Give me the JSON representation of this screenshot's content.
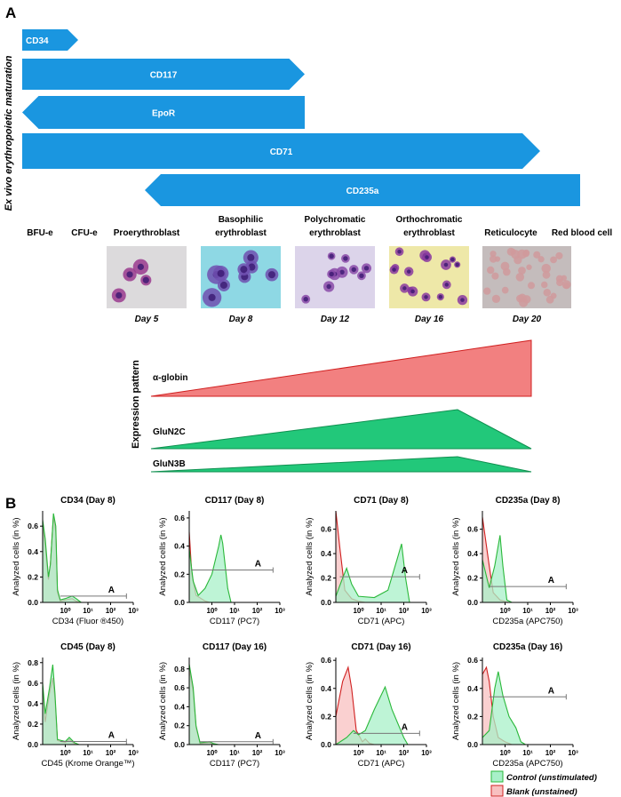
{
  "panel_a": {
    "label": "A",
    "side_label": "Ex vivo erythropoietic maturation",
    "arrows": [
      {
        "label": "CD34",
        "direction": "right"
      },
      {
        "label": "CD117",
        "direction": "right"
      },
      {
        "label": "EpoR",
        "direction": "left"
      },
      {
        "label": "CD71",
        "direction": "right"
      },
      {
        "label": "CD235a",
        "direction": "left"
      }
    ],
    "arrow_color": "#1a96e0",
    "stages": [
      {
        "line1": "BFU-e",
        "line2": ""
      },
      {
        "line1": "CFU-e",
        "line2": ""
      },
      {
        "line1": "Proerythroblast",
        "line2": ""
      },
      {
        "line1": "Basophilic",
        "line2": "erythroblast"
      },
      {
        "line1": "Polychromatic",
        "line2": "erythroblast"
      },
      {
        "line1": "Orthochromatic",
        "line2": "erythroblast"
      },
      {
        "line1": "Reticulocyte",
        "line2": ""
      },
      {
        "line1": "Red blood cell",
        "line2": ""
      }
    ],
    "micrographs": [
      {
        "day": "Day 5",
        "bg": "#dcdadc",
        "cell": "#9a3a8e"
      },
      {
        "day": "Day 8",
        "bg": "#8ed8e4",
        "cell": "#7050b0"
      },
      {
        "day": "Day 12",
        "bg": "#dcd4ea",
        "cell": "#8a4aa8"
      },
      {
        "day": "Day 16",
        "bg": "#eee8a8",
        "cell": "#8a3aa0"
      },
      {
        "day": "Day 20",
        "bg": "#c4bcbc",
        "cell": "#d09a9c"
      }
    ],
    "expression": {
      "label": "Expression pattern",
      "items": [
        {
          "label": "α-globin",
          "color": "#f28080",
          "stroke": "#d02020"
        },
        {
          "label": "GluN2C",
          "color": "#22c87a",
          "stroke": "#109050"
        },
        {
          "label": "GluN3B",
          "color": "#22c87a",
          "stroke": "#109050"
        }
      ]
    }
  },
  "panel_b": {
    "label": "B",
    "legend": [
      {
        "label": "Control (unstimulated)",
        "color": "#a8f0c8"
      },
      {
        "label": "Blank (unstained)",
        "color": "#f8c0c0"
      }
    ]
  },
  "chart_data": [
    {
      "type": "area",
      "title": "CD34 (Day 8)",
      "xlabel": "CD34 (Fluor ®450)",
      "ylabel": "Analyzed cells (in %)",
      "xscale": "log",
      "xlim": [
        0.1,
        1000
      ],
      "ylim": [
        0,
        0.72
      ],
      "yticks": [
        "0.0",
        "0.2",
        "0.4",
        "0.6"
      ],
      "ytick_values": [
        0,
        0.2,
        0.4,
        0.6
      ],
      "xticks": [
        "10⁰",
        "10¹",
        "10²",
        "10³"
      ],
      "xtick_values": [
        1,
        10,
        100,
        1000
      ],
      "series": [
        {
          "name": "Control (unstimulated)",
          "x": [
            0.1,
            0.13,
            0.18,
            0.22,
            0.3,
            0.38,
            0.45,
            0.6,
            1,
            2,
            3,
            5
          ],
          "y": [
            0.65,
            0.5,
            0.2,
            0.3,
            0.7,
            0.6,
            0.1,
            0.02,
            0.03,
            0.05,
            0.03,
            0
          ]
        },
        {
          "name": "Blank (unstained)",
          "x": [
            0.1,
            0.13,
            0.18,
            0.22,
            0.3,
            0.38,
            0.45,
            0.6,
            1,
            2,
            3,
            5
          ],
          "y": [
            0.6,
            0.45,
            0.18,
            0.3,
            0.68,
            0.55,
            0.08,
            0.01,
            0.02,
            0.03,
            0.01,
            0
          ]
        }
      ],
      "gate": {
        "label": "A",
        "y": 0.05,
        "x": [
          0.6,
          500
        ]
      }
    },
    {
      "type": "area",
      "title": "CD117 (Day 8)",
      "xlabel": "CD117 (PC7)",
      "ylabel": "Analyzed cells (in %)",
      "xscale": "log",
      "xlim": [
        0.1,
        1000
      ],
      "ylim": [
        0,
        0.65
      ],
      "yticks": [
        "0.0",
        "0.2",
        "0.4",
        "0.6"
      ],
      "ytick_values": [
        0,
        0.2,
        0.4,
        0.6
      ],
      "xticks": [
        "10⁰",
        "10¹",
        "10²",
        "10³"
      ],
      "xtick_values": [
        1,
        10,
        100,
        1000
      ],
      "series": [
        {
          "name": "Control (unstimulated)",
          "x": [
            0.1,
            0.15,
            0.25,
            0.5,
            1,
            2,
            2.5,
            3,
            5,
            7
          ],
          "y": [
            0.38,
            0.15,
            0.05,
            0.1,
            0.2,
            0.4,
            0.48,
            0.42,
            0.1,
            0
          ]
        },
        {
          "name": "Blank (unstained)",
          "x": [
            0.1,
            0.13,
            0.2,
            0.5,
            0.8
          ],
          "y": [
            0.5,
            0.2,
            0.05,
            0.01,
            0
          ]
        }
      ],
      "gate": {
        "label": "A",
        "y": 0.23,
        "x": [
          0.12,
          500
        ]
      }
    },
    {
      "type": "area",
      "title": "CD71 (Day 8)",
      "xlabel": "CD71 (APC)",
      "ylabel": "Analyzed cells (in %)",
      "xscale": "log",
      "xlim": [
        0.1,
        1000
      ],
      "ylim": [
        0,
        0.75
      ],
      "yticks": [
        "0.0",
        "0.2",
        "0.4",
        "0.6"
      ],
      "ytick_values": [
        0,
        0.2,
        0.4,
        0.6
      ],
      "xticks": [
        "10⁰",
        "10¹",
        "10²",
        "10³"
      ],
      "xtick_values": [
        1,
        10,
        100,
        1000
      ],
      "series": [
        {
          "name": "Control (unstimulated)",
          "x": [
            0.1,
            0.2,
            0.3,
            0.5,
            1,
            5,
            20,
            50,
            80,
            120,
            180
          ],
          "y": [
            0.05,
            0.2,
            0.28,
            0.15,
            0.05,
            0.04,
            0.1,
            0.35,
            0.48,
            0.2,
            0
          ]
        },
        {
          "name": "Blank (unstained)",
          "x": [
            0.1,
            0.15,
            0.25,
            0.5,
            1,
            2
          ],
          "y": [
            0.75,
            0.45,
            0.1,
            0.03,
            0.01,
            0
          ]
        }
      ],
      "gate": {
        "label": "A",
        "y": 0.21,
        "x": [
          0.15,
          500
        ]
      }
    },
    {
      "type": "area",
      "title": "CD235a (Day 8)",
      "xlabel": "CD235a (APC750)",
      "ylabel": "Analyzed cells (in %)",
      "xscale": "log",
      "xlim": [
        0.1,
        1000
      ],
      "ylim": [
        0,
        0.75
      ],
      "yticks": [
        "0.0",
        "0.2",
        "0.4",
        "0.6"
      ],
      "ytick_values": [
        0,
        0.2,
        0.4,
        0.6
      ],
      "xticks": [
        "10⁰",
        "10¹",
        "10²",
        "10³"
      ],
      "xtick_values": [
        1,
        10,
        100,
        1000
      ],
      "series": [
        {
          "name": "Control (unstimulated)",
          "x": [
            0.1,
            0.2,
            0.35,
            0.6,
            0.8,
            1.2,
            2
          ],
          "y": [
            0.35,
            0.12,
            0.3,
            0.55,
            0.3,
            0.02,
            0
          ]
        },
        {
          "name": "Blank (unstained)",
          "x": [
            0.1,
            0.2,
            0.3,
            0.6,
            1.5
          ],
          "y": [
            0.7,
            0.3,
            0.08,
            0.02,
            0
          ]
        }
      ],
      "gate": {
        "label": "A",
        "y": 0.13,
        "x": [
          0.2,
          500
        ]
      }
    },
    {
      "type": "area",
      "title": "CD45 (Day 8)",
      "xlabel": "CD45 (Krome Orange™)",
      "ylabel": "Analyzed cells (in %)",
      "xscale": "log",
      "xlim": [
        0.1,
        1000
      ],
      "ylim": [
        0,
        0.85
      ],
      "yticks": [
        "0.0",
        "0.2",
        "0.4",
        "0.6",
        "0.8"
      ],
      "ytick_values": [
        0,
        0.2,
        0.4,
        0.6,
        0.8
      ],
      "xticks": [
        "10⁰",
        "10¹",
        "10²",
        "10³"
      ],
      "xtick_values": [
        1,
        10,
        100,
        1000
      ],
      "series": [
        {
          "name": "Control (unstimulated)",
          "x": [
            0.1,
            0.13,
            0.2,
            0.28,
            0.35,
            0.45,
            1,
            1.5,
            2.5,
            4
          ],
          "y": [
            0.6,
            0.3,
            0.55,
            0.78,
            0.5,
            0.05,
            0.03,
            0.07,
            0.02,
            0
          ]
        },
        {
          "name": "Blank (unstained)",
          "x": [
            0.1,
            0.13,
            0.2,
            0.28,
            0.35,
            0.45,
            1,
            1.5,
            2.5,
            4
          ],
          "y": [
            0.55,
            0.22,
            0.5,
            0.65,
            0.45,
            0.04,
            0.02,
            0.05,
            0.01,
            0
          ]
        }
      ],
      "gate": {
        "label": "A",
        "y": 0.03,
        "x": [
          0.6,
          500
        ]
      }
    },
    {
      "type": "area",
      "title": "CD117 (Day 16)",
      "xlabel": "CD117 (PC7)",
      "ylabel": "Analyzed cells (in %)",
      "xscale": "log",
      "xlim": [
        0.1,
        1000
      ],
      "ylim": [
        0,
        0.92
      ],
      "yticks": [
        "0.0",
        "0.2",
        "0.4",
        "0.6",
        "0.8"
      ],
      "ytick_values": [
        0,
        0.2,
        0.4,
        0.6,
        0.8
      ],
      "xticks": [
        "10⁰",
        "10¹",
        "10²",
        "10³"
      ],
      "xtick_values": [
        1,
        10,
        100,
        1000
      ],
      "series": [
        {
          "name": "Control (unstimulated)",
          "x": [
            0.1,
            0.15,
            0.2,
            0.3,
            0.8,
            1.2,
            2
          ],
          "y": [
            0.85,
            0.6,
            0.2,
            0.02,
            0.03,
            0.01,
            0
          ]
        },
        {
          "name": "Blank (unstained)",
          "x": [
            0.1,
            0.15,
            0.2,
            0.3,
            0.8,
            1.2
          ],
          "y": [
            0.8,
            0.55,
            0.18,
            0.01,
            0.02,
            0
          ]
        }
      ],
      "gate": {
        "label": "A",
        "y": 0.03,
        "x": [
          0.3,
          500
        ]
      }
    },
    {
      "type": "area",
      "title": "CD71 (Day 16)",
      "xlabel": "CD71 (APC)",
      "ylabel": "Analyzed cells (in %)",
      "xscale": "log",
      "xlim": [
        0.1,
        1000
      ],
      "ylim": [
        0,
        0.62
      ],
      "yticks": [
        "0.0",
        "0.2",
        "0.4",
        "0.6"
      ],
      "ytick_values": [
        0,
        0.2,
        0.4,
        0.6
      ],
      "xticks": [
        "10⁰",
        "10¹",
        "10²",
        "10³"
      ],
      "xtick_values": [
        1,
        10,
        100,
        1000
      ],
      "series": [
        {
          "name": "Control (unstimulated)",
          "x": [
            0.1,
            0.3,
            0.6,
            1,
            2,
            5,
            15,
            30,
            100,
            150
          ],
          "y": [
            0,
            0.05,
            0.1,
            0.07,
            0.1,
            0.25,
            0.41,
            0.25,
            0.05,
            0
          ]
        },
        {
          "name": "Blank (unstained)",
          "x": [
            0.1,
            0.2,
            0.35,
            0.5,
            0.8,
            1.5,
            2,
            3,
            5
          ],
          "y": [
            0.2,
            0.45,
            0.55,
            0.4,
            0.1,
            0.02,
            0.04,
            0.01,
            0
          ]
        }
      ],
      "gate": {
        "label": "A",
        "y": 0.08,
        "x": [
          0.6,
          500
        ]
      }
    },
    {
      "type": "area",
      "title": "CD235a (Day 16)",
      "xlabel": "CD235a (APC750)",
      "ylabel": "Analyzed cells (in %)",
      "xscale": "log",
      "xlim": [
        0.1,
        1000
      ],
      "ylim": [
        0,
        0.62
      ],
      "yticks": [
        "0.0",
        "0.2",
        "0.4",
        "0.6"
      ],
      "ytick_values": [
        0,
        0.2,
        0.4,
        0.6
      ],
      "xticks": [
        "10⁰",
        "10¹",
        "10²",
        "10³"
      ],
      "xtick_values": [
        1,
        10,
        100,
        1000
      ],
      "series": [
        {
          "name": "Control (unstimulated)",
          "x": [
            0.1,
            0.2,
            0.35,
            0.5,
            0.8,
            1.5,
            3,
            5,
            8
          ],
          "y": [
            0.05,
            0.1,
            0.4,
            0.52,
            0.35,
            0.2,
            0.12,
            0.02,
            0
          ]
        },
        {
          "name": "Blank (unstained)",
          "x": [
            0.1,
            0.15,
            0.2,
            0.3,
            0.5,
            1,
            2
          ],
          "y": [
            0.5,
            0.55,
            0.45,
            0.2,
            0.05,
            0.02,
            0
          ]
        }
      ],
      "gate": {
        "label": "A",
        "y": 0.34,
        "x": [
          0.2,
          500
        ]
      }
    }
  ]
}
